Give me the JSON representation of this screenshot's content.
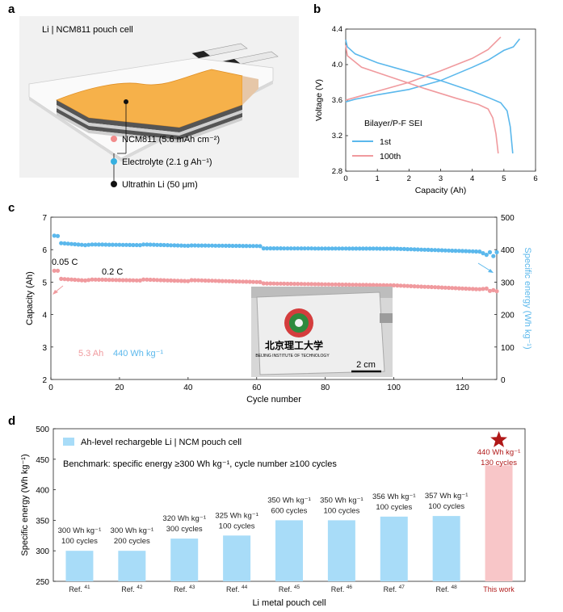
{
  "panels": {
    "a": {
      "letter": "a",
      "title": "Li | NCM811 pouch cell",
      "legend": [
        {
          "label": "NCM811 (5.6 mAh cm⁻²)",
          "color": "#f28c8c"
        },
        {
          "label": "Electrolyte (2.1 g Ah⁻¹)",
          "color": "#36b0e0"
        },
        {
          "label": "Ultrathin Li (50 μm)",
          "color": "#111111"
        }
      ]
    },
    "b": {
      "letter": "b"
    },
    "c": {
      "letter": "c"
    },
    "d": {
      "letter": "d"
    }
  },
  "colors": {
    "blue": "#5bb8ec",
    "pink": "#f09a9e",
    "bar_blue": "#a8dcf8",
    "bar_pink": "#f8c6c8",
    "dark_red": "#b01818"
  },
  "chart_data": [
    {
      "type": "line",
      "panel": "b",
      "xlabel": "Capacity (Ah)",
      "ylabel": "Voltage (V)",
      "xlim": [
        0,
        6
      ],
      "ylim": [
        2.8,
        4.4
      ],
      "xticks": [
        "0",
        "1",
        "2",
        "3",
        "4",
        "5",
        "6"
      ],
      "yticks": [
        "2.8",
        "3.2",
        "3.6",
        "4.0",
        "4.4"
      ],
      "legend_title": "Bilayer/P-F SEI",
      "legend_position": "bottom-left",
      "series": [
        {
          "name": "1st",
          "color": "#5bb8ec",
          "charge": {
            "x": [
              0,
              0.3,
              1,
              2,
              3,
              4,
              4.5,
              5,
              5.3,
              5.5
            ],
            "y": [
              3.58,
              3.61,
              3.66,
              3.72,
              3.82,
              3.97,
              4.05,
              4.16,
              4.2,
              4.29
            ]
          },
          "discharge": {
            "x": [
              0,
              0.05,
              0.3,
              1,
              2,
              3,
              4,
              4.5,
              4.9,
              5.1,
              5.2,
              5.28
            ],
            "y": [
              4.28,
              4.2,
              4.12,
              4.02,
              3.92,
              3.82,
              3.7,
              3.63,
              3.57,
              3.48,
              3.3,
              3.0
            ]
          }
        },
        {
          "name": "100th",
          "color": "#f09a9e",
          "charge": {
            "x": [
              0,
              0.3,
              1,
              2,
              3,
              4,
              4.5,
              4.9
            ],
            "y": [
              3.6,
              3.63,
              3.7,
              3.8,
              3.93,
              4.07,
              4.17,
              4.31
            ]
          },
          "discharge": {
            "x": [
              0,
              0.05,
              0.5,
              1.5,
              2.5,
              3.5,
              4.2,
              4.5,
              4.65,
              4.75,
              4.82
            ],
            "y": [
              4.22,
              4.1,
              3.97,
              3.85,
              3.73,
              3.62,
              3.55,
              3.5,
              3.4,
              3.22,
              3.0
            ]
          }
        }
      ]
    },
    {
      "type": "scatter",
      "panel": "c",
      "xlabel": "Cycle number",
      "ylabel": "Capacity (Ah)",
      "y2label": "Specific energy (Wh kg⁻¹)",
      "xlim": [
        0,
        130
      ],
      "ylim": [
        2,
        7
      ],
      "y2lim": [
        0,
        500
      ],
      "xticks": [
        "0",
        "20",
        "40",
        "60",
        "80",
        "100",
        "120"
      ],
      "yticks": [
        "2",
        "3",
        "4",
        "5",
        "6",
        "7"
      ],
      "y2ticks": [
        "0",
        "100",
        "200",
        "300",
        "400",
        "500"
      ],
      "series": [
        {
          "name": "Capacity",
          "color": "#f09a9e",
          "axis": "left",
          "x": [
            1,
            2,
            3,
            10,
            12,
            26,
            27,
            40,
            41,
            61,
            62,
            100,
            125,
            127,
            128,
            129,
            130
          ],
          "y": [
            5.35,
            5.35,
            5.1,
            5.05,
            5.08,
            5.05,
            5.08,
            5.03,
            5.06,
            5.0,
            4.96,
            4.9,
            4.78,
            4.8,
            4.73,
            4.75,
            4.72
          ]
        },
        {
          "name": "Specific energy",
          "color": "#5bb8ec",
          "axis": "right",
          "x": [
            1,
            2,
            3,
            10,
            12,
            26,
            27,
            40,
            41,
            61,
            62,
            100,
            125,
            127,
            128,
            129,
            130
          ],
          "y": [
            443,
            442,
            420,
            414,
            416,
            414,
            416,
            412,
            413,
            411,
            404,
            403,
            394,
            384,
            392,
            380,
            392
          ]
        }
      ],
      "annotations": [
        {
          "text": "0.05 C"
        },
        {
          "text": "0.2 C"
        },
        {
          "text": "5.3 Ah",
          "color": "#f09a9e"
        },
        {
          "text": "440 Wh kg⁻¹",
          "color": "#5bb8ec"
        },
        {
          "text": "2 cm"
        }
      ],
      "inset_photo": {
        "logo_text": "北京理工大学",
        "logo_subtext": "BEIJING INSTITUTE OF TECHNOLOGY"
      }
    },
    {
      "type": "bar",
      "panel": "d",
      "xlabel": "Li metal pouch cell",
      "ylabel": "Specific energy (Wh kg⁻¹)",
      "ylim": [
        250,
        500
      ],
      "yticks": [
        "250",
        "300",
        "350",
        "400",
        "450",
        "500"
      ],
      "legend_label": "Ah-level rechargeble Li | NCM pouch cell",
      "benchmark_text": "Benchmark: specific energy ≥300 Wh kg⁻¹, cycle number ≥100 cycles",
      "categories": [
        "Ref. 41",
        "Ref. 42",
        "Ref. 43",
        "Ref. 44",
        "Ref. 45",
        "Ref. 46",
        "Ref. 47",
        "Ref. 48",
        "This work"
      ],
      "cat_main": [
        "Ref. ",
        "Ref. ",
        "Ref. ",
        "Ref. ",
        "Ref. ",
        "Ref. ",
        "Ref. ",
        "Ref. ",
        "This work"
      ],
      "cat_sup": [
        "41",
        "42",
        "43",
        "44",
        "45",
        "46",
        "47",
        "48",
        ""
      ],
      "values": [
        300,
        300,
        320,
        325,
        350,
        350,
        356,
        357,
        440
      ],
      "labels_energy": [
        "300 Wh kg⁻¹",
        "300 Wh kg⁻¹",
        "320 Wh kg⁻¹",
        "325 Wh kg⁻¹",
        "350 Wh kg⁻¹",
        "350 Wh kg⁻¹",
        "356 Wh kg⁻¹",
        "357 Wh kg⁻¹",
        "440 Wh kg⁻¹"
      ],
      "labels_cycles": [
        "100 cycles",
        "200 cycles",
        "300 cycles",
        "100 cycles",
        "600 cycles",
        "100 cycles",
        "100 cycles",
        "100 cycles",
        "130 cycles"
      ]
    }
  ]
}
